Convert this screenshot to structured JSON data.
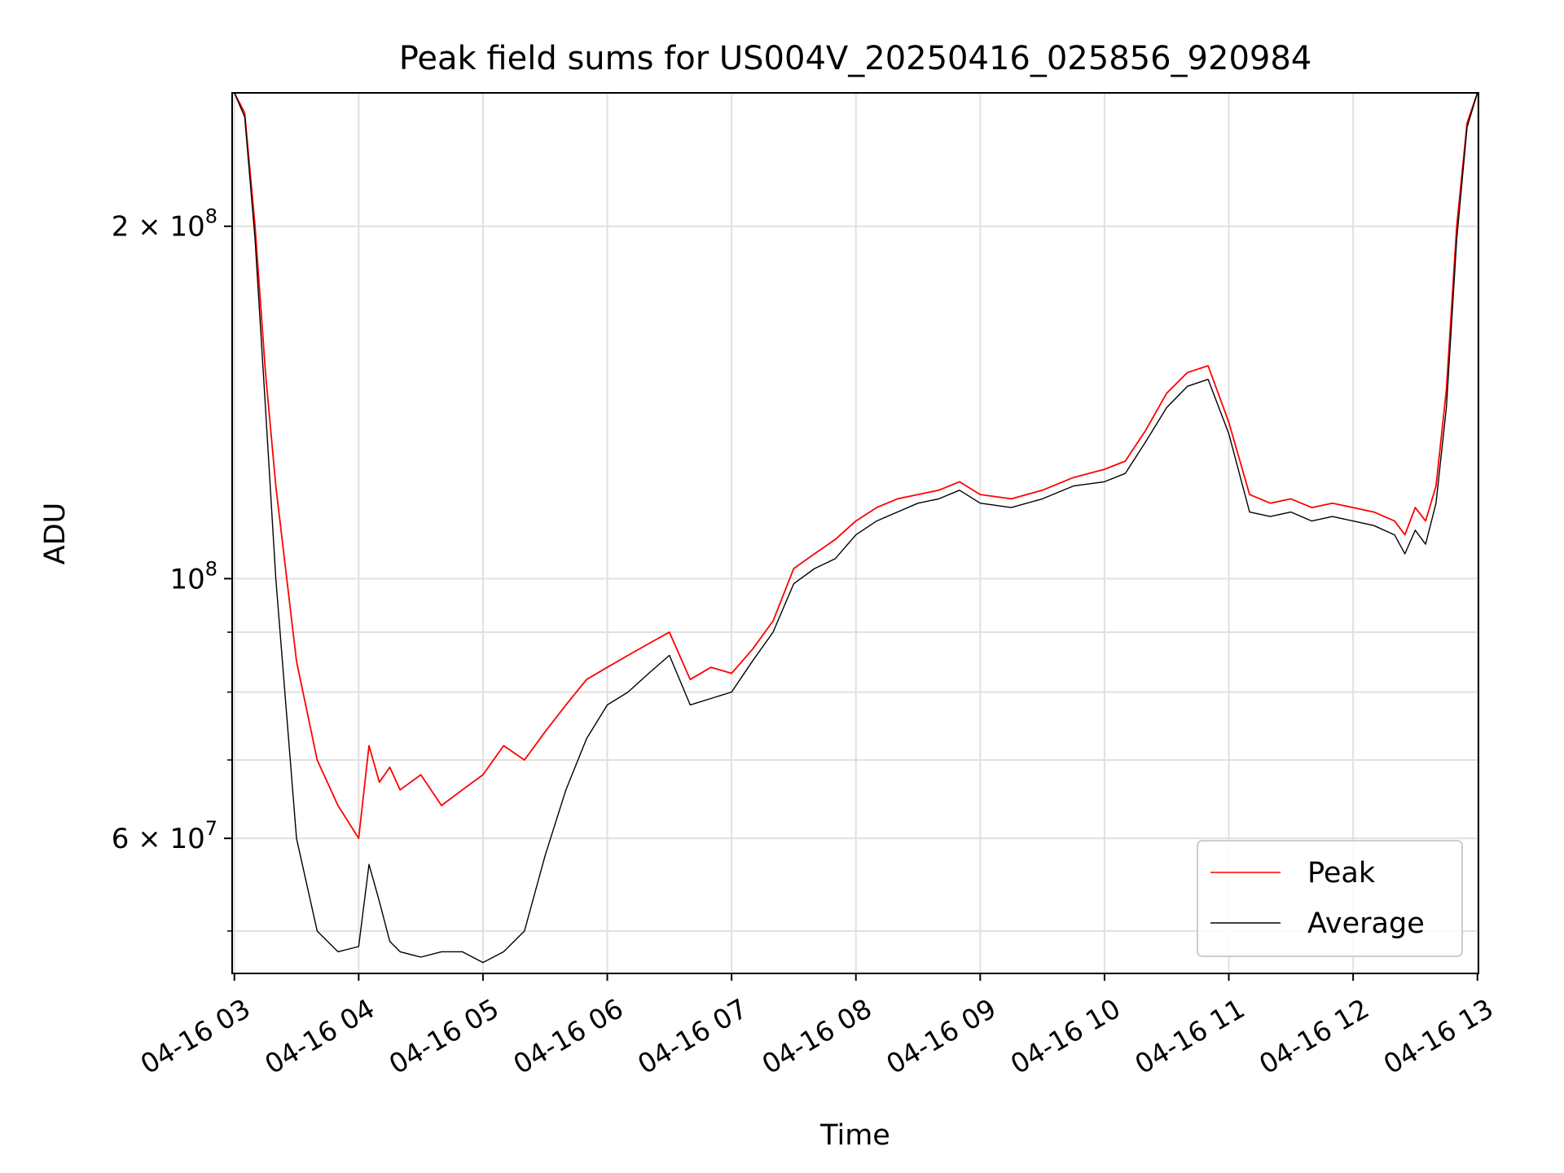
{
  "chart_data": {
    "type": "line",
    "title": "Peak field sums for US004V_20250416_025856_920984",
    "xlabel": "Time",
    "ylabel": "ADU",
    "x_ticks": [
      "04-16 03",
      "04-16 04",
      "04-16 05",
      "04-16 06",
      "04-16 07",
      "04-16 08",
      "04-16 09",
      "04-16 10",
      "04-16 11",
      "04-16 12",
      "04-16 13"
    ],
    "y_scale": "log",
    "ylim": [
      46000000,
      260000000
    ],
    "xlim": [
      "2025-04-16 02:58:56",
      "2025-04-16 13:00:30"
    ],
    "y_ticks": [
      {
        "label": "6 × 10",
        "exp": "7",
        "value": 60000000
      },
      {
        "label": "10",
        "exp": "8",
        "value": 100000000
      },
      {
        "label": "2 × 10",
        "exp": "8",
        "value": 200000000
      }
    ],
    "y_minor_ticks": [
      50000000,
      70000000,
      80000000,
      90000000
    ],
    "grid": true,
    "legend": {
      "position": "lower-right"
    },
    "series": [
      {
        "name": "Peak",
        "color": "#ff0000",
        "x": [
          "2025-04-16 03:00",
          "2025-04-16 03:05",
          "2025-04-16 03:10",
          "2025-04-16 03:15",
          "2025-04-16 03:20",
          "2025-04-16 03:30",
          "2025-04-16 03:40",
          "2025-04-16 03:50",
          "2025-04-16 04:00",
          "2025-04-16 04:05",
          "2025-04-16 04:10",
          "2025-04-16 04:15",
          "2025-04-16 04:20",
          "2025-04-16 04:30",
          "2025-04-16 04:40",
          "2025-04-16 04:50",
          "2025-04-16 05:00",
          "2025-04-16 05:10",
          "2025-04-16 05:20",
          "2025-04-16 05:30",
          "2025-04-16 05:40",
          "2025-04-16 05:50",
          "2025-04-16 06:00",
          "2025-04-16 06:10",
          "2025-04-16 06:20",
          "2025-04-16 06:30",
          "2025-04-16 06:40",
          "2025-04-16 06:50",
          "2025-04-16 07:00",
          "2025-04-16 07:10",
          "2025-04-16 07:20",
          "2025-04-16 07:30",
          "2025-04-16 07:40",
          "2025-04-16 07:50",
          "2025-04-16 08:00",
          "2025-04-16 08:10",
          "2025-04-16 08:20",
          "2025-04-16 08:30",
          "2025-04-16 08:40",
          "2025-04-16 08:50",
          "2025-04-16 09:00",
          "2025-04-16 09:15",
          "2025-04-16 09:30",
          "2025-04-16 09:45",
          "2025-04-16 10:00",
          "2025-04-16 10:10",
          "2025-04-16 10:20",
          "2025-04-16 10:30",
          "2025-04-16 10:40",
          "2025-04-16 10:50",
          "2025-04-16 11:00",
          "2025-04-16 11:10",
          "2025-04-16 11:20",
          "2025-04-16 11:30",
          "2025-04-16 11:40",
          "2025-04-16 11:50",
          "2025-04-16 12:00",
          "2025-04-16 12:10",
          "2025-04-16 12:20",
          "2025-04-16 12:25",
          "2025-04-16 12:30",
          "2025-04-16 12:35",
          "2025-04-16 12:40",
          "2025-04-16 12:45",
          "2025-04-16 12:50",
          "2025-04-16 12:55",
          "2025-04-16 13:00"
        ],
        "values": [
          260000000,
          250000000,
          200000000,
          150000000,
          120000000,
          85000000,
          70000000,
          64000000,
          60000000,
          72000000,
          67000000,
          69000000,
          66000000,
          68000000,
          64000000,
          66000000,
          68000000,
          72000000,
          70000000,
          74000000,
          78000000,
          82000000,
          84000000,
          86000000,
          88000000,
          90000000,
          82000000,
          84000000,
          83000000,
          87000000,
          92000000,
          102000000,
          105000000,
          108000000,
          112000000,
          115000000,
          117000000,
          118000000,
          119000000,
          121000000,
          118000000,
          117000000,
          119000000,
          122000000,
          124000000,
          126000000,
          134000000,
          144000000,
          150000000,
          152000000,
          136000000,
          118000000,
          116000000,
          117000000,
          115000000,
          116000000,
          115000000,
          114000000,
          112000000,
          109000000,
          115000000,
          112000000,
          120000000,
          145000000,
          200000000,
          245000000,
          260000000
        ]
      },
      {
        "name": "Average",
        "color": "#000000",
        "x": [
          "2025-04-16 03:00",
          "2025-04-16 03:05",
          "2025-04-16 03:10",
          "2025-04-16 03:15",
          "2025-04-16 03:20",
          "2025-04-16 03:30",
          "2025-04-16 03:40",
          "2025-04-16 03:50",
          "2025-04-16 04:00",
          "2025-04-16 04:05",
          "2025-04-16 04:10",
          "2025-04-16 04:15",
          "2025-04-16 04:20",
          "2025-04-16 04:30",
          "2025-04-16 04:40",
          "2025-04-16 04:50",
          "2025-04-16 05:00",
          "2025-04-16 05:10",
          "2025-04-16 05:20",
          "2025-04-16 05:30",
          "2025-04-16 05:40",
          "2025-04-16 05:50",
          "2025-04-16 06:00",
          "2025-04-16 06:10",
          "2025-04-16 06:20",
          "2025-04-16 06:30",
          "2025-04-16 06:40",
          "2025-04-16 06:50",
          "2025-04-16 07:00",
          "2025-04-16 07:10",
          "2025-04-16 07:20",
          "2025-04-16 07:30",
          "2025-04-16 07:40",
          "2025-04-16 07:50",
          "2025-04-16 08:00",
          "2025-04-16 08:10",
          "2025-04-16 08:20",
          "2025-04-16 08:30",
          "2025-04-16 08:40",
          "2025-04-16 08:50",
          "2025-04-16 09:00",
          "2025-04-16 09:15",
          "2025-04-16 09:30",
          "2025-04-16 09:45",
          "2025-04-16 10:00",
          "2025-04-16 10:10",
          "2025-04-16 10:20",
          "2025-04-16 10:30",
          "2025-04-16 10:40",
          "2025-04-16 10:50",
          "2025-04-16 11:00",
          "2025-04-16 11:10",
          "2025-04-16 11:20",
          "2025-04-16 11:30",
          "2025-04-16 11:40",
          "2025-04-16 11:50",
          "2025-04-16 12:00",
          "2025-04-16 12:10",
          "2025-04-16 12:20",
          "2025-04-16 12:25",
          "2025-04-16 12:30",
          "2025-04-16 12:35",
          "2025-04-16 12:40",
          "2025-04-16 12:45",
          "2025-04-16 12:50",
          "2025-04-16 12:55",
          "2025-04-16 13:00"
        ],
        "values": [
          260000000,
          248000000,
          195000000,
          140000000,
          100000000,
          60000000,
          50000000,
          48000000,
          48500000,
          57000000,
          53000000,
          49000000,
          48000000,
          47500000,
          48000000,
          48000000,
          47000000,
          48000000,
          50000000,
          58000000,
          66000000,
          73000000,
          78000000,
          80000000,
          83000000,
          86000000,
          78000000,
          79000000,
          80000000,
          85000000,
          90000000,
          99000000,
          102000000,
          104000000,
          109000000,
          112000000,
          114000000,
          116000000,
          117000000,
          119000000,
          116000000,
          115000000,
          117000000,
          120000000,
          121000000,
          123000000,
          131000000,
          140000000,
          146000000,
          148000000,
          133000000,
          114000000,
          113000000,
          114000000,
          112000000,
          113000000,
          112000000,
          111000000,
          109000000,
          105000000,
          110000000,
          107000000,
          116000000,
          140000000,
          195000000,
          243000000,
          260000000
        ]
      }
    ]
  }
}
